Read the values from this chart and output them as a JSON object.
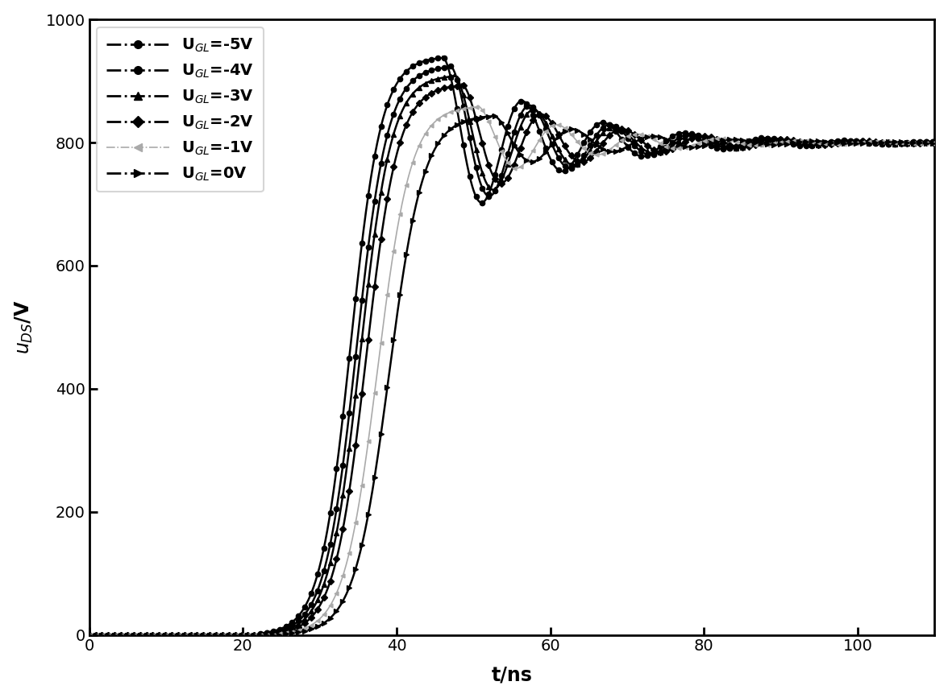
{
  "title": "",
  "xlabel": "t/ns",
  "ylabel": "$u_{DS}$/V",
  "xlim": [
    0,
    110
  ],
  "ylim": [
    0,
    1000
  ],
  "xticks": [
    0,
    20,
    40,
    60,
    80,
    100
  ],
  "yticks": [
    0,
    200,
    400,
    600,
    800,
    1000
  ],
  "steady": 800,
  "osc_period": 10.5,
  "figsize": [
    11.76,
    8.67
  ],
  "dpi": 100,
  "curves": [
    {
      "label": "U$_{GL}$=-5V",
      "color": "black",
      "marker": "o",
      "markersize": 4.5,
      "linewidth": 1.8,
      "t_start": 22.0,
      "rise_dur": 18.0,
      "peak_t": 46.0,
      "peak_v": 940,
      "osc_amp": 95,
      "osc_decay": 0.07,
      "linestyle": "-"
    },
    {
      "label": "U$_{GL}$=-4V",
      "color": "black",
      "marker": "o",
      "markersize": 4.5,
      "linewidth": 1.8,
      "t_start": 22.5,
      "rise_dur": 19.5,
      "peak_t": 47.0,
      "peak_v": 925,
      "osc_amp": 85,
      "osc_decay": 0.07,
      "linestyle": "-"
    },
    {
      "label": "U$_{GL}$=-3V",
      "color": "black",
      "marker": "^",
      "markersize": 4.5,
      "linewidth": 1.8,
      "t_start": 23.0,
      "rise_dur": 21.5,
      "peak_t": 47.5,
      "peak_v": 910,
      "osc_amp": 75,
      "osc_decay": 0.07,
      "linestyle": "-"
    },
    {
      "label": "U$_{GL}$=-2V",
      "color": "black",
      "marker": "D",
      "markersize": 4.0,
      "linewidth": 1.8,
      "t_start": 23.5,
      "rise_dur": 24.0,
      "peak_t": 48.5,
      "peak_v": 895,
      "osc_amp": 65,
      "osc_decay": 0.07,
      "linestyle": "-"
    },
    {
      "label": "U$_{GL}$=-1V",
      "color": "#aaaaaa",
      "marker": "<",
      "markersize": 3.5,
      "linewidth": 1.2,
      "t_start": 24.5,
      "rise_dur": 27.0,
      "peak_t": 50.5,
      "peak_v": 860,
      "osc_amp": 45,
      "osc_decay": 0.07,
      "linestyle": "-"
    },
    {
      "label": "U$_{GL}$=0V",
      "color": "black",
      "marker": ">",
      "markersize": 4.5,
      "linewidth": 1.8,
      "t_start": 25.5,
      "rise_dur": 30.0,
      "peak_t": 52.5,
      "peak_v": 845,
      "osc_amp": 38,
      "osc_decay": 0.07,
      "linestyle": "-"
    }
  ]
}
